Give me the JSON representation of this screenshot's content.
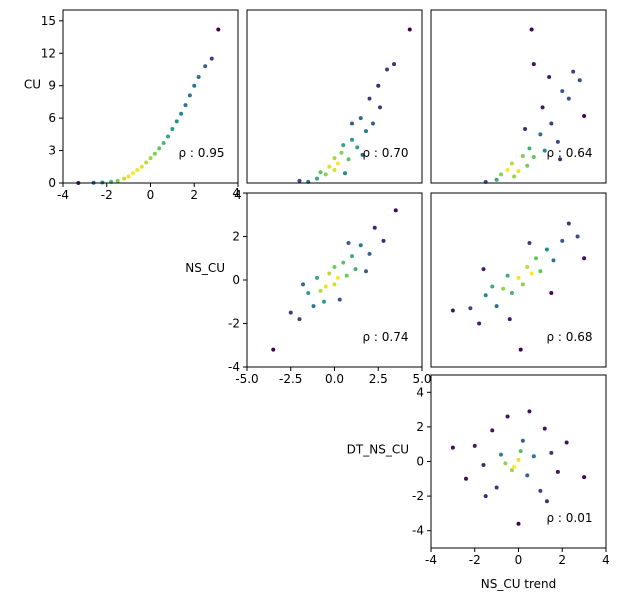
{
  "chart_data": [
    {
      "type": "scatter",
      "annotation": "ρ : 0.95",
      "ylabel": "CU",
      "xlim": [
        -4,
        4
      ],
      "xticks": [
        -4,
        -2,
        0,
        2,
        4
      ],
      "ylim": [
        0,
        16
      ],
      "yticks": [
        0,
        3,
        6,
        9,
        12,
        15
      ],
      "x": [
        -3.3,
        -2.6,
        -2.2,
        -1.8,
        -1.5,
        -1.2,
        -1,
        -0.8,
        -0.6,
        -0.4,
        -0.2,
        0,
        0.2,
        0.4,
        0.6,
        0.8,
        1,
        1.2,
        1.4,
        1.6,
        1.8,
        2,
        2.2,
        2.5,
        2.8,
        3.1
      ],
      "y": [
        0,
        0.02,
        0.05,
        0.1,
        0.2,
        0.4,
        0.6,
        0.9,
        1.2,
        1.5,
        1.9,
        2.3,
        2.7,
        3.2,
        3.7,
        4.3,
        5,
        5.7,
        6.4,
        7.2,
        8.1,
        9,
        9.8,
        10.8,
        11.5,
        14.2
      ]
    },
    {
      "type": "scatter",
      "annotation": "ρ : 0.70",
      "xlim": [
        -5,
        5
      ],
      "ylim": [
        0,
        16
      ],
      "x": [
        -1.5,
        -1,
        -0.8,
        -0.5,
        -0.3,
        0,
        0,
        0.2,
        0.4,
        0.5,
        0.8,
        1,
        1,
        1.3,
        1.5,
        1.8,
        2,
        2.2,
        2.5,
        3,
        3.4,
        -2,
        0.6,
        1.6,
        2.6,
        4.3
      ],
      "y": [
        0.1,
        0.4,
        1,
        0.8,
        1.5,
        1.2,
        2.3,
        1.8,
        2.8,
        3.5,
        2.2,
        4,
        5.5,
        3.3,
        6,
        4.8,
        7.8,
        5.5,
        9,
        10.5,
        11,
        0.2,
        0.9,
        2.6,
        7,
        14.2
      ]
    },
    {
      "type": "scatter",
      "annotation": "ρ : 0.64",
      "xlim": [
        -4,
        4
      ],
      "ylim": [
        0,
        16
      ],
      "x": [
        -1.5,
        -1,
        -0.8,
        -0.5,
        -0.3,
        0,
        0.2,
        0.4,
        0.5,
        0.7,
        1,
        1.2,
        1.5,
        1.8,
        2,
        2.3,
        2.8,
        3,
        0.3,
        -0.2,
        1.4,
        2.5,
        0.6,
        1.9,
        1.1,
        0.7
      ],
      "y": [
        0.1,
        0.3,
        0.8,
        1.2,
        1.8,
        1.1,
        2.5,
        1.6,
        3.2,
        2.4,
        4.5,
        3,
        5.5,
        3.8,
        8.5,
        7.8,
        9.5,
        6.2,
        5,
        0.6,
        9.8,
        10.3,
        14.2,
        2.2,
        7,
        11
      ]
    },
    {
      "type": "scatter",
      "annotation": "ρ : 0.74",
      "ylabel": "NS_CU",
      "xlim": [
        -5,
        5
      ],
      "xticks": [
        {
          "value": -5,
          "label": "-5.0"
        },
        {
          "value": -2.5,
          "label": "-2.5"
        },
        {
          "value": 0,
          "label": "0.0"
        },
        {
          "value": 2.5,
          "label": "2.5"
        },
        {
          "value": 5,
          "label": "5.0"
        }
      ],
      "ylim": [
        -4,
        4
      ],
      "yticks": [
        -4,
        -2,
        0,
        2,
        4
      ],
      "x": [
        -3.5,
        -2.5,
        -2,
        -1.5,
        -1.2,
        -1,
        -0.8,
        -0.5,
        -0.3,
        0,
        0,
        0.2,
        0.5,
        0.7,
        1,
        1.2,
        1.5,
        2,
        2.3,
        2.8,
        3.5,
        -0.6,
        0.8,
        -1.8,
        1.8,
        0.3
      ],
      "y": [
        -3.2,
        -1.5,
        -1.8,
        -0.6,
        -1.2,
        0.1,
        -0.5,
        -0.3,
        0.3,
        -0.2,
        0.6,
        0.1,
        0.8,
        0.2,
        1.1,
        0.5,
        1.6,
        1.2,
        2.4,
        1.8,
        3.2,
        -1,
        1.7,
        -0.2,
        0.4,
        -0.9
      ]
    },
    {
      "type": "scatter",
      "annotation": "ρ : 0.68",
      "xlim": [
        -4,
        4
      ],
      "ylim": [
        -4,
        4
      ],
      "x": [
        -3,
        -2.2,
        -1.8,
        -1.5,
        -1.2,
        -1,
        -0.7,
        -0.5,
        -0.3,
        0,
        0.2,
        0.4,
        0.6,
        0.8,
        1,
        1.3,
        1.6,
        2,
        2.3,
        2.7,
        -0.4,
        0.5,
        1.5,
        -1.6,
        0.1,
        3
      ],
      "y": [
        -1.4,
        -1.3,
        -2,
        -0.7,
        -0.3,
        -1.2,
        -0.4,
        0.2,
        -0.6,
        0.1,
        -0.2,
        0.6,
        0.3,
        1,
        0.4,
        1.4,
        0.9,
        1.8,
        2.6,
        2,
        -1.8,
        1.7,
        -0.6,
        0.5,
        -3.2,
        1
      ]
    },
    {
      "type": "scatter",
      "annotation": "ρ : 0.01",
      "ylabel": "DT_NS_CU",
      "xlabel": "NS_CU trend",
      "xlim": [
        -4,
        4
      ],
      "xticks": [
        -4,
        -2,
        0,
        2,
        4
      ],
      "ylim": [
        -5,
        5
      ],
      "yticks": [
        -4,
        -2,
        0,
        2,
        4
      ],
      "x": [
        -3,
        -2.4,
        -2,
        -1.6,
        -1.2,
        -1,
        -0.8,
        -0.5,
        -0.3,
        0,
        0,
        0.2,
        0.4,
        0.7,
        1,
        1.2,
        1.5,
        1.8,
        2.2,
        3,
        -0.6,
        0.5,
        -1.5,
        1.3,
        -0.2,
        0.1
      ],
      "y": [
        0.8,
        -1,
        0.9,
        -0.2,
        1.8,
        -1.5,
        0.4,
        2.6,
        -0.5,
        0.1,
        -3.6,
        1.2,
        -0.8,
        0.3,
        -1.7,
        1.9,
        0.5,
        -0.6,
        1.1,
        -0.9,
        -0.1,
        2.9,
        -2,
        -2.3,
        -0.3,
        0.6
      ]
    }
  ]
}
